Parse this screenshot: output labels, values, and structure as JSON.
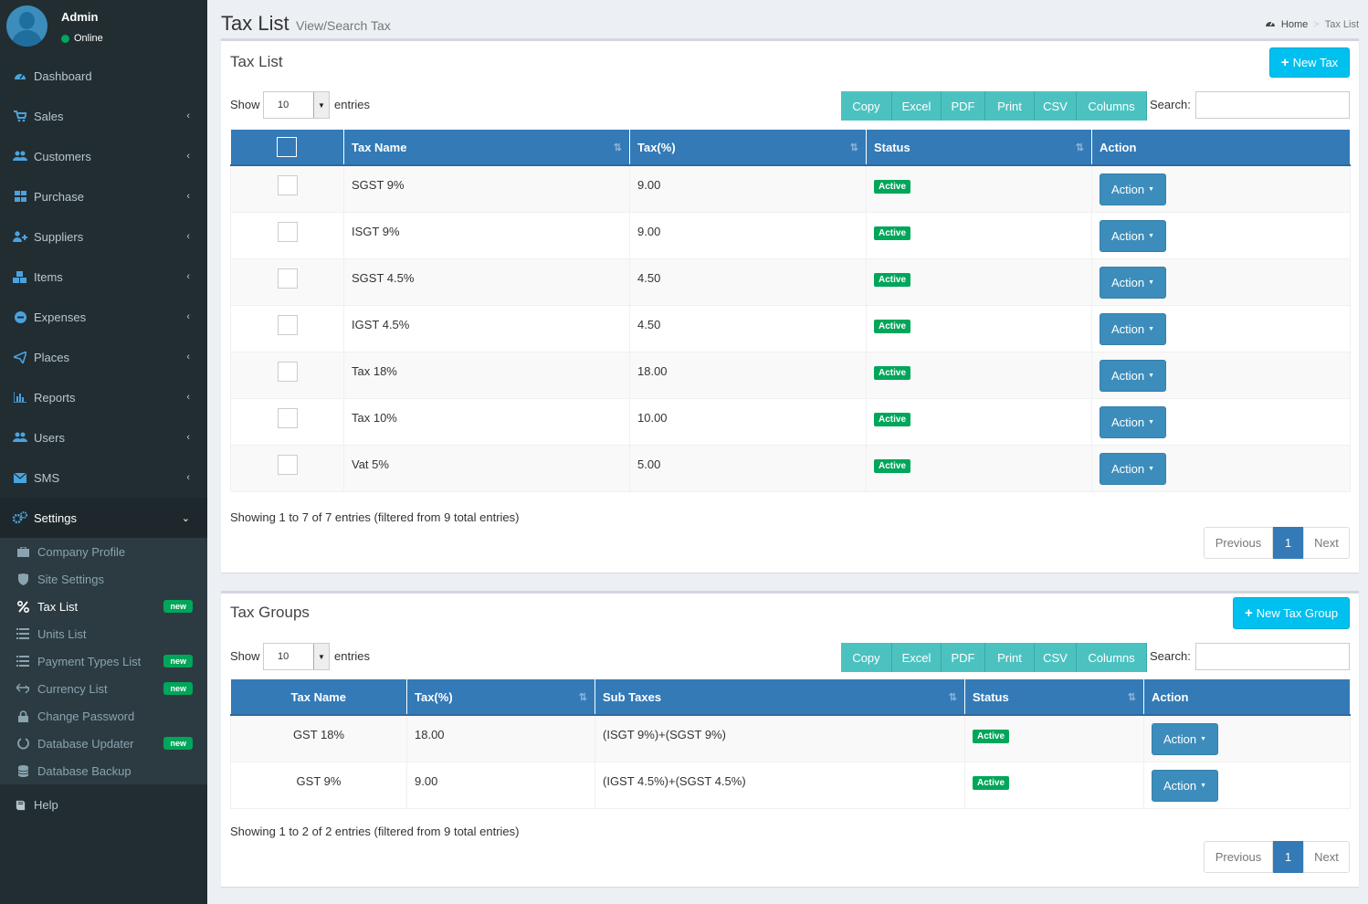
{
  "user": {
    "name": "Admin",
    "status": "Online"
  },
  "menu": [
    {
      "label": "Dashboard",
      "icon": "dashboard-icon"
    },
    {
      "label": "Sales",
      "icon": "cart-icon"
    },
    {
      "label": "Customers",
      "icon": "users-icon"
    },
    {
      "label": "Purchase",
      "icon": "grid-icon"
    },
    {
      "label": "Suppliers",
      "icon": "user-plus-icon"
    },
    {
      "label": "Items",
      "icon": "cubes-icon"
    },
    {
      "label": "Expenses",
      "icon": "minus-circle-icon"
    },
    {
      "label": "Places",
      "icon": "paper-plane-icon"
    },
    {
      "label": "Reports",
      "icon": "bar-chart-icon"
    },
    {
      "label": "Users",
      "icon": "users-icon"
    },
    {
      "label": "SMS",
      "icon": "envelope-icon"
    },
    {
      "label": "Settings",
      "icon": "cogs-icon"
    }
  ],
  "submenu": [
    {
      "label": "Company Profile",
      "icon": "briefcase-icon",
      "badge": ""
    },
    {
      "label": "Site Settings",
      "icon": "shield-icon",
      "badge": ""
    },
    {
      "label": "Tax List",
      "icon": "percent-icon",
      "badge": "new"
    },
    {
      "label": "Units List",
      "icon": "list-icon",
      "badge": ""
    },
    {
      "label": "Payment Types List",
      "icon": "list-icon",
      "badge": "new"
    },
    {
      "label": "Currency List",
      "icon": "exchange-icon",
      "badge": "new"
    },
    {
      "label": "Change Password",
      "icon": "lock-icon",
      "badge": ""
    },
    {
      "label": "Database Updater",
      "icon": "circle-o-notch-icon",
      "badge": "new"
    },
    {
      "label": "Database Backup",
      "icon": "database-icon",
      "badge": ""
    }
  ],
  "help": {
    "label": "Help",
    "icon": "book-icon"
  },
  "page": {
    "title": "Tax List",
    "subtitle": "View/Search Tax"
  },
  "breadcrumb": {
    "home": "Home",
    "current": "Tax List"
  },
  "common": {
    "show": "Show",
    "entries": "entries",
    "page_length": "10",
    "search": "Search:",
    "buttons": [
      "Copy",
      "Excel",
      "PDF",
      "Print",
      "CSV",
      "Columns"
    ],
    "previous": "Previous",
    "next": "Next",
    "page": "1",
    "action": "Action",
    "active": "Active"
  },
  "tax_list": {
    "title": "Tax List",
    "new_button": "New Tax",
    "columns": [
      "Tax Name",
      "Tax(%)",
      "Status",
      "Action"
    ],
    "rows": [
      {
        "name": "SGST 9%",
        "tax": "9.00",
        "status": "Active"
      },
      {
        "name": "ISGT 9%",
        "tax": "9.00",
        "status": "Active"
      },
      {
        "name": "SGST 4.5%",
        "tax": "4.50",
        "status": "Active"
      },
      {
        "name": "IGST 4.5%",
        "tax": "4.50",
        "status": "Active"
      },
      {
        "name": "Tax 18%",
        "tax": "18.00",
        "status": "Active"
      },
      {
        "name": "Tax 10%",
        "tax": "10.00",
        "status": "Active"
      },
      {
        "name": "Vat 5%",
        "tax": "5.00",
        "status": "Active"
      }
    ],
    "info": "Showing 1 to 7 of 7 entries (filtered from 9 total entries)"
  },
  "tax_groups": {
    "title": "Tax Groups",
    "new_button": "New Tax Group",
    "columns": [
      "Tax Name",
      "Tax(%)",
      "Sub Taxes",
      "Status",
      "Action"
    ],
    "rows": [
      {
        "name": "GST 18%",
        "tax": "18.00",
        "sub": "(ISGT 9%)+(SGST 9%)",
        "status": "Active"
      },
      {
        "name": "GST 9%",
        "tax": "9.00",
        "sub": "(IGST 4.5%)+(SGST 4.5%)",
        "status": "Active"
      }
    ],
    "info": "Showing 1 to 2 of 2 entries (filtered from 9 total entries)"
  }
}
